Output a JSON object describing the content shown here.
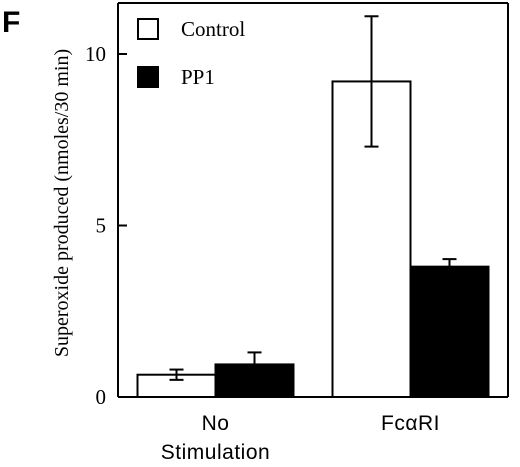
{
  "panel_label": "F",
  "chart_data": {
    "type": "bar",
    "title": "",
    "xlabel": "",
    "ylabel": "Superoxide produced (nmoles/30 min)",
    "ylim": [
      0,
      11.6
    ],
    "yticks": [
      0,
      5,
      10
    ],
    "categories": [
      {
        "lines": [
          "No",
          "Stimulation"
        ]
      },
      {
        "lines": [
          "FcαRI"
        ]
      }
    ],
    "series": [
      {
        "name": "Control",
        "color": "#ffffff",
        "values": [
          0.65,
          9.2
        ],
        "errors": [
          0.15,
          1.9
        ]
      },
      {
        "name": "PP1",
        "color": "#000000",
        "values": [
          0.95,
          3.8
        ],
        "errors": [
          0.35,
          0.22
        ]
      }
    ],
    "legend_position": "top-left",
    "grid": false
  }
}
